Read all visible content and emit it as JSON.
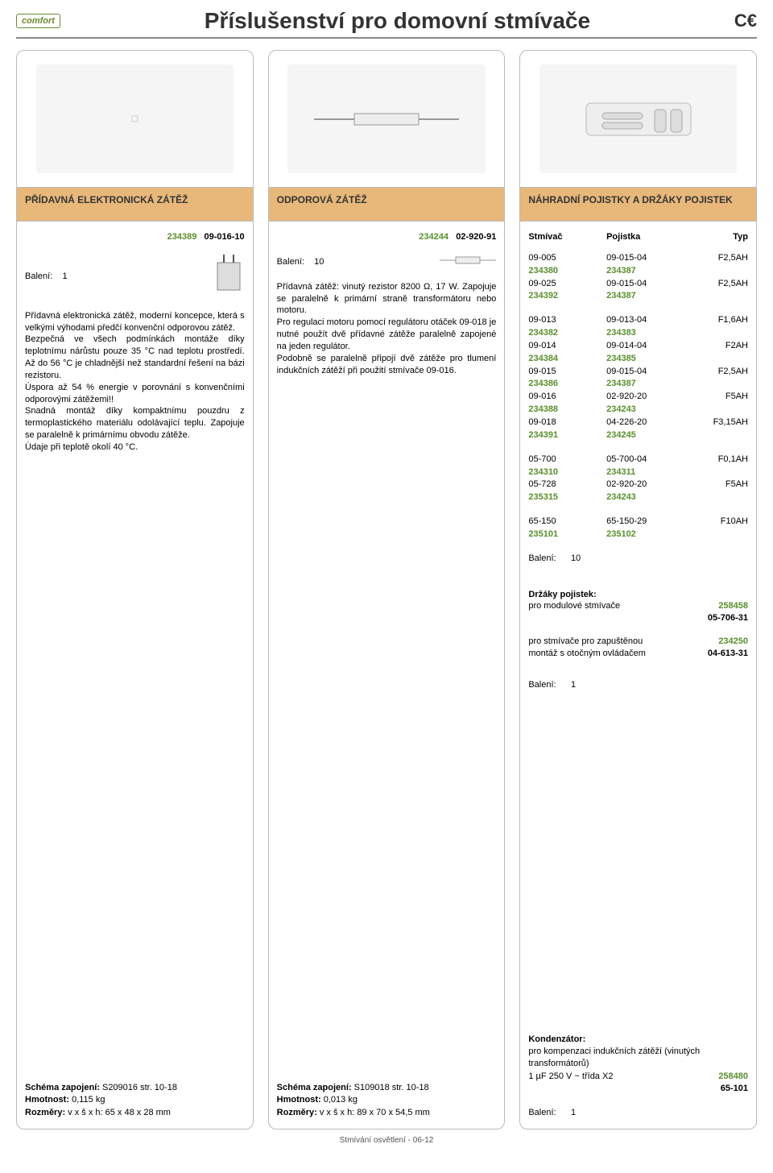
{
  "header": {
    "logo": "comfort",
    "title": "Příslušenství pro domovní stmívače",
    "ce": "C€"
  },
  "col1": {
    "heading": "PŘÍDAVNÁ ELEKTRONICKÁ ZÁTĚŽ",
    "sku_green": "234389",
    "sku_code": "09-016-10",
    "baleni_label": "Balení:",
    "baleni_val": "1",
    "desc": "Přídavná elektronická zátěž, moderní koncepce, která s velkými výhodami předčí konvenční odporovou zátěž.\nBezpečná ve všech podmínkách montáže díky teplotnímu nárůstu pouze 35 °C nad teplotu prostředí. Až do 56 °C je chladnější než standardní řešení na bázi rezistoru.\nÚspora až 54 % energie v porovnání s konvenčními odporovými zátěžemi!!\nSnadná montáž díky kompaktnímu pouzdru z termoplastického materiálu odolávající teplu. Zapojuje se paralelně k primárnímu obvodu zátěže.\nÚdaje při teplotě okolí 40 °C.",
    "schema_label": "Schéma zapojení:",
    "schema_val": "S209016 str. 10-18",
    "hmotnost_label": "Hmotnost:",
    "hmotnost_val": "0,115 kg",
    "rozmery_label": "Rozměry:",
    "rozmery_val": "v x š x h: 65 x 48 x 28 mm"
  },
  "col2": {
    "heading": "ODPOROVÁ ZÁTĚŽ",
    "sku_green": "234244",
    "sku_code": "02-920-91",
    "baleni_label": "Balení:",
    "baleni_val": "10",
    "desc": "Přídavná zátěž: vinutý rezistor 8200 Ω, 17 W. Zapojuje se paralelně k primární straně transformátoru nebo motoru.\nPro regulaci motoru pomocí regulátoru otáček 09-018 je nutné použít dvě přídavné zátěže paralelně zapojené na jeden regulátor.\nPodobně se paralelně připojí dvě zátěže pro tlumení indukčních zátěží při použití stmívače 09-016.",
    "schema_label": "Schéma zapojení:",
    "schema_val": "S109018 str. 10-18",
    "hmotnost_label": "Hmotnost:",
    "hmotnost_val": "0,013 kg",
    "rozmery_label": "Rozměry:",
    "rozmery_val": "v x š x h: 89 x 70 x 54,5 mm"
  },
  "col3": {
    "heading": "NÁHRADNÍ POJISTKY A DRŽÁKY POJISTEK",
    "head_row": {
      "a": "Stmívač",
      "b": "Pojistka",
      "c": "Typ"
    },
    "group1": [
      {
        "a": "09-005",
        "b": "09-015-04",
        "c": "F2,5AH",
        "g": false
      },
      {
        "a": "234380",
        "b": "234387",
        "c": "",
        "g": true
      },
      {
        "a": "09-025",
        "b": "09-015-04",
        "c": "F2,5AH",
        "g": false
      },
      {
        "a": "234392",
        "b": "234387",
        "c": "",
        "g": true
      }
    ],
    "group2": [
      {
        "a": "09-013",
        "b": "09-013-04",
        "c": "F1,6AH",
        "g": false
      },
      {
        "a": "234382",
        "b": "234383",
        "c": "",
        "g": true
      },
      {
        "a": "09-014",
        "b": "09-014-04",
        "c": "F2AH",
        "g": false
      },
      {
        "a": "234384",
        "b": "234385",
        "c": "",
        "g": true
      },
      {
        "a": "09-015",
        "b": "09-015-04",
        "c": "F2,5AH",
        "g": false
      },
      {
        "a": "234386",
        "b": "234387",
        "c": "",
        "g": true
      },
      {
        "a": "09-016",
        "b": "02-920-20",
        "c": "F5AH",
        "g": false
      },
      {
        "a": "234388",
        "b": "234243",
        "c": "",
        "g": true
      },
      {
        "a": "09-018",
        "b": "04-226-20",
        "c": "F3,15AH",
        "g": false
      },
      {
        "a": "234391",
        "b": "234245",
        "c": "",
        "g": true
      }
    ],
    "group3": [
      {
        "a": "05-700",
        "b": "05-700-04",
        "c": "F0,1AH",
        "g": false
      },
      {
        "a": "234310",
        "b": "234311",
        "c": "",
        "g": true
      },
      {
        "a": "05-728",
        "b": "02-920-20",
        "c": "F5AH",
        "g": false
      },
      {
        "a": "235315",
        "b": "234243",
        "c": "",
        "g": true
      }
    ],
    "group4": [
      {
        "a": "65-150",
        "b": "65-150-29",
        "c": "F10AH",
        "g": false
      },
      {
        "a": "235101",
        "b": "235102",
        "c": "",
        "g": true
      }
    ],
    "baleni_label": "Balení:",
    "baleni_val": "10",
    "drzaky_title": "Držáky pojistek:",
    "drzaky_row1_label": "pro modulové stmívače",
    "drzaky_row1_sku": "258458",
    "drzaky_row1_code": "05-706-31",
    "drzaky_row2_l1": "pro stmívače pro zapuštěnou",
    "drzaky_row2_l2": "montáž s otočným ovládačem",
    "drzaky_row2_sku": "234250",
    "drzaky_row2_code": "04-613-31",
    "baleni2_label": "Balení:",
    "baleni2_val": "1",
    "kond_title": "Kondenzátor:",
    "kond_desc": "pro kompenzaci indukčních zátěží (vinutých transformátorů)",
    "kond_spec": "1 µF 250 V ~ třída X2",
    "kond_sku": "258480",
    "kond_code": "65-101",
    "baleni3_label": "Balení:",
    "baleni3_val": "1"
  },
  "footer": "Stmívání osvětlení - 06-12",
  "colors": {
    "heading_bg": "#e8b87a",
    "sku_green": "#5a8f2e",
    "border": "#bbbbbb"
  }
}
